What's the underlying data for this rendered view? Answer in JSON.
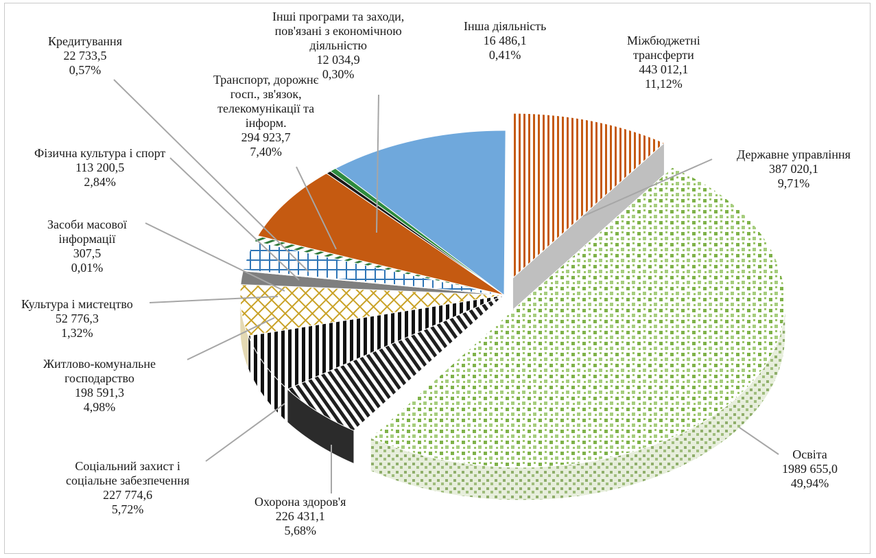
{
  "chart_data": {
    "type": "pie",
    "variant": "3d-exploded",
    "title": "",
    "slices": [
      {
        "key": "derzh",
        "name_lines": [
          "Державне управління"
        ],
        "value_text": "387 020,1",
        "percent_text": "9,71%",
        "value": 387020.1,
        "percent": 9.71,
        "pattern": "orange-stripes"
      },
      {
        "key": "osvita",
        "name_lines": [
          "Освіта"
        ],
        "value_text": "1989 655,0",
        "percent_text": "49,94%",
        "value": 1989655.0,
        "percent": 49.94,
        "pattern": "green-dots"
      },
      {
        "key": "ohorona",
        "name_lines": [
          "Охорона здоров'я"
        ],
        "value_text": "226 431,1",
        "percent_text": "5,68%",
        "value": 226431.1,
        "percent": 5.68,
        "pattern": "black-diagonal"
      },
      {
        "key": "social",
        "name_lines": [
          "Соціальний  захист і",
          "соціальне забезпечення"
        ],
        "value_text": "227 774,6",
        "percent_text": "5,72%",
        "value": 227774.6,
        "percent": 5.72,
        "pattern": "vertical-stripes"
      },
      {
        "key": "zhytlo",
        "name_lines": [
          "Житлово-комунальне",
          "господарство"
        ],
        "value_text": "198 591,3",
        "percent_text": "4,98%",
        "value": 198591.3,
        "percent": 4.98,
        "pattern": "gold-lattice"
      },
      {
        "key": "kultura",
        "name_lines": [
          "Культура і мистецтво"
        ],
        "value_text": "52 776,3",
        "percent_text": "1,32%",
        "value": 52776.3,
        "percent": 1.32,
        "pattern": "grey-solid"
      },
      {
        "key": "zmi",
        "name_lines": [
          "Засоби масової",
          "інформації"
        ],
        "value_text": "307,5",
        "percent_text": "0,01%",
        "value": 307.5,
        "percent": 0.01,
        "pattern": "none"
      },
      {
        "key": "sport",
        "name_lines": [
          "Фізична культура і спорт"
        ],
        "value_text": "113 200,5",
        "percent_text": "2,84%",
        "value": 113200.5,
        "percent": 2.84,
        "pattern": "blue-grid"
      },
      {
        "key": "kredyt",
        "name_lines": [
          "Кредитування"
        ],
        "value_text": "22 733,5",
        "percent_text": "0,57%",
        "value": 22733.5,
        "percent": 0.57,
        "pattern": "green-hatch"
      },
      {
        "key": "transport",
        "name_lines": [
          "Транспорт,  дорожнє",
          "госп., зв'язок,",
          "телекомунікації та",
          "інформ."
        ],
        "value_text": "294 923,7",
        "percent_text": "7,40%",
        "value": 294923.7,
        "percent": 7.4,
        "pattern": "brown-stripes"
      },
      {
        "key": "inshi",
        "name_lines": [
          "Інші програми та заходи,",
          "пов'язані з економічною",
          "діяльністю"
        ],
        "value_text": "12 034,9",
        "percent_text": "0,30%",
        "value": 12034.9,
        "percent": 0.3,
        "pattern": "black-solid"
      },
      {
        "key": "insha",
        "name_lines": [
          "Інша діяльність"
        ],
        "value_text": "16 486,1",
        "percent_text": "0,41%",
        "value": 16486.1,
        "percent": 0.41,
        "pattern": "green-solid"
      },
      {
        "key": "mizh",
        "name_lines": [
          "Міжбюджетні",
          "трансферти"
        ],
        "value_text": "443 012,1",
        "percent_text": "11,12%",
        "value": 443012.1,
        "percent": 11.12,
        "pattern": "blue-solid"
      }
    ],
    "legend": "none",
    "colors": {
      "leader_line": "#a6a6a6",
      "side_dark": "#3a3a3a",
      "orange": "#c55a11",
      "green": "#70ad47",
      "blue": "#6fa8dc",
      "gold": "#c9a227",
      "brown": "#7f5f00"
    }
  }
}
